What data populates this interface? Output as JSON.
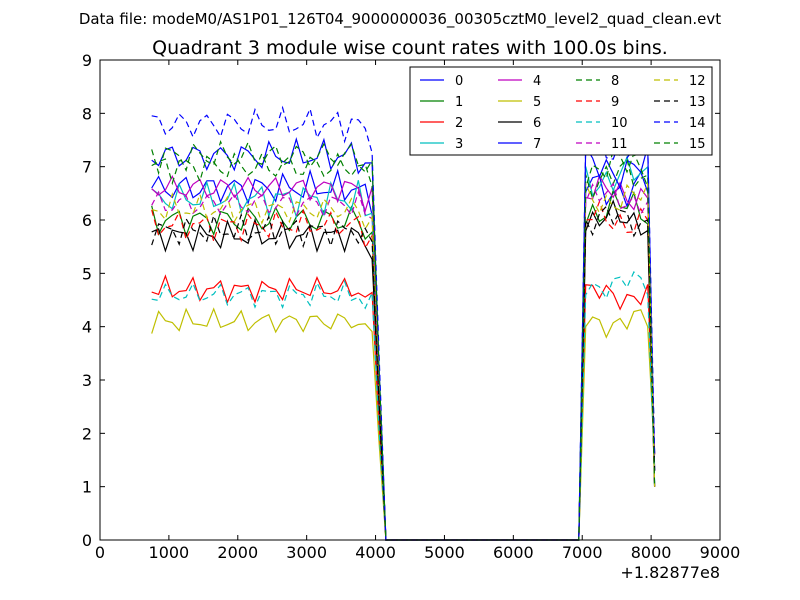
{
  "suptitle": "Data file: modeM0/AS1P01_126T04_9000000036_00305cztM0_level2_quad_clean.evt",
  "chart_data": {
    "type": "line",
    "title": "Quadrant 3 module wise count rates with 100.0s bins.",
    "xlabel": "",
    "ylabel": "",
    "x_offset_label": "+1.82877e8",
    "xlim": [
      0,
      9000
    ],
    "ylim": [
      0,
      9
    ],
    "xticks": [
      "0",
      "1000",
      "2000",
      "3000",
      "4000",
      "5000",
      "6000",
      "7000",
      "8000",
      "9000"
    ],
    "yticks": [
      "0",
      "1",
      "2",
      "3",
      "4",
      "5",
      "6",
      "7",
      "8",
      "9"
    ],
    "legend_position": "top-right",
    "x": [
      750,
      850,
      950,
      1050,
      1150,
      1250,
      1350,
      1450,
      1550,
      1650,
      1750,
      1850,
      1950,
      2050,
      2150,
      2250,
      2350,
      2450,
      2550,
      2650,
      2750,
      2850,
      2950,
      3050,
      3150,
      3250,
      3350,
      3450,
      3550,
      3650,
      3750,
      3850,
      3950,
      4050,
      4150,
      4250,
      4350,
      6950,
      7050,
      7150,
      7250,
      7350,
      7450,
      7550,
      7650,
      7750,
      7850,
      7950,
      8050
    ],
    "series": [
      {
        "name": "0",
        "color": "#0000ff",
        "dash": "solid",
        "level": 6.6,
        "amp": 0.35,
        "post": 6.6
      },
      {
        "name": "1",
        "color": "#008000",
        "dash": "solid",
        "level": 6.0,
        "amp": 0.35,
        "post": 6.2
      },
      {
        "name": "2",
        "color": "#ff0000",
        "dash": "solid",
        "level": 4.7,
        "amp": 0.25,
        "post": 4.6
      },
      {
        "name": "3",
        "color": "#00bfbf",
        "dash": "solid",
        "level": 6.4,
        "amp": 0.35,
        "post": 6.8
      },
      {
        "name": "4",
        "color": "#bf00bf",
        "dash": "solid",
        "level": 6.6,
        "amp": 0.3,
        "post": 6.5
      },
      {
        "name": "5",
        "color": "#bfbf00",
        "dash": "solid",
        "level": 4.1,
        "amp": 0.25,
        "post": 4.1
      },
      {
        "name": "6",
        "color": "#000000",
        "dash": "solid",
        "level": 5.7,
        "amp": 0.3,
        "post": 6.0
      },
      {
        "name": "7",
        "color": "#0000ff",
        "dash": "solid",
        "level": 7.2,
        "amp": 0.35,
        "post": 7.0
      },
      {
        "name": "8",
        "color": "#008000",
        "dash": "dashed",
        "level": 7.0,
        "amp": 0.35,
        "post": 6.8
      },
      {
        "name": "9",
        "color": "#ff0000",
        "dash": "dashed",
        "level": 5.9,
        "amp": 0.3,
        "post": 6.0
      },
      {
        "name": "10",
        "color": "#00bfbf",
        "dash": "dashed",
        "level": 4.6,
        "amp": 0.25,
        "post": 4.8
      },
      {
        "name": "11",
        "color": "#bf00bf",
        "dash": "dashed",
        "level": 6.3,
        "amp": 0.3,
        "post": 6.4
      },
      {
        "name": "12",
        "color": "#bfbf00",
        "dash": "dashed",
        "level": 6.2,
        "amp": 0.3,
        "post": 6.4
      },
      {
        "name": "13",
        "color": "#000000",
        "dash": "dashed",
        "level": 5.8,
        "amp": 0.3,
        "post": 6.0
      },
      {
        "name": "14",
        "color": "#0000ff",
        "dash": "dashed",
        "level": 7.8,
        "amp": 0.35,
        "post": 7.4
      },
      {
        "name": "15",
        "color": "#008000",
        "dash": "dashed",
        "level": 7.2,
        "amp": 0.35,
        "post": 7.0
      }
    ]
  }
}
